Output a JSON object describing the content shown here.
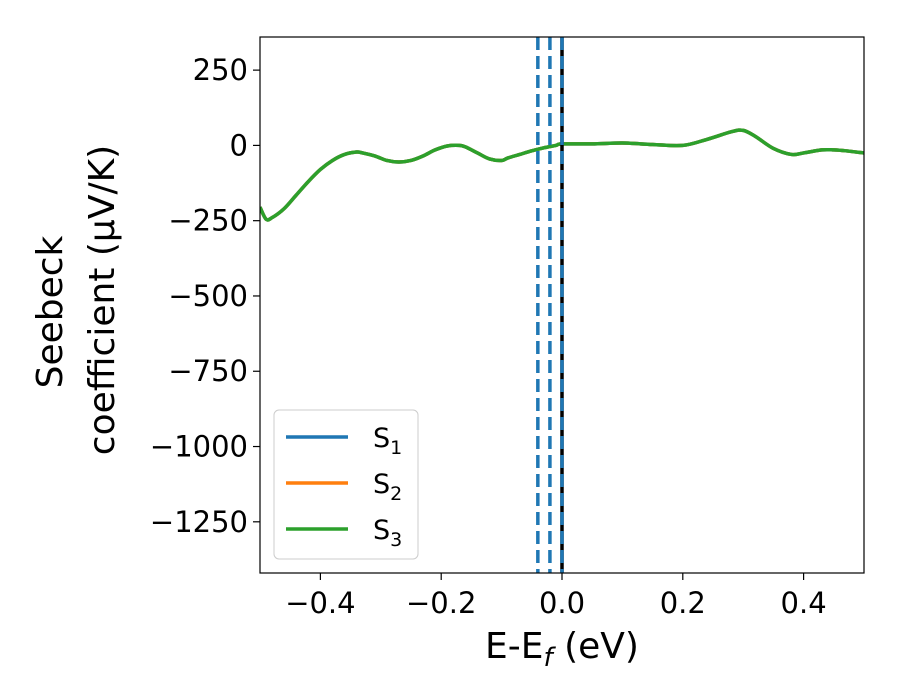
{
  "chart_data": {
    "type": "line",
    "title": "",
    "xlabel": {
      "main": "E-E",
      "sub": "f",
      "tail": " (eV)"
    },
    "ylabel": {
      "line1": "Seebeck",
      "line2": "coefficient  (μV/K)"
    },
    "xlim": [
      -0.5,
      0.5
    ],
    "ylim": [
      -1420,
      360
    ],
    "x_ticks": [
      {
        "value": -0.4,
        "label": "−0.4"
      },
      {
        "value": -0.2,
        "label": "−0.2"
      },
      {
        "value": 0.0,
        "label": "0.0"
      },
      {
        "value": 0.2,
        "label": "0.2"
      },
      {
        "value": 0.4,
        "label": "0.4"
      }
    ],
    "y_ticks": [
      {
        "value": 250,
        "label": "250"
      },
      {
        "value": 0,
        "label": "0"
      },
      {
        "value": -250,
        "label": "−250"
      },
      {
        "value": -500,
        "label": "−500"
      },
      {
        "value": -750,
        "label": "−750"
      },
      {
        "value": -1000,
        "label": "−1000"
      },
      {
        "value": -1250,
        "label": "−1250"
      }
    ],
    "grid": false,
    "legend_position": "bottom-left",
    "series": [
      {
        "name": "S",
        "sub": "1",
        "color": "#1f77b4",
        "x": [
          -0.5,
          -0.49,
          -0.48,
          -0.46,
          -0.44,
          -0.42,
          -0.4,
          -0.38,
          -0.36,
          -0.34,
          -0.33,
          -0.31,
          -0.29,
          -0.27,
          -0.25,
          -0.23,
          -0.21,
          -0.19,
          -0.17,
          -0.16,
          -0.14,
          -0.12,
          -0.1,
          -0.09,
          -0.07,
          -0.05,
          -0.03,
          -0.01,
          0.0,
          0.05,
          0.1,
          0.15,
          0.2,
          0.24,
          0.28,
          0.3,
          0.32,
          0.35,
          0.38,
          0.4,
          0.43,
          0.45,
          0.47,
          0.5
        ],
        "y": [
          -205,
          -245,
          -240,
          -210,
          -165,
          -120,
          -80,
          -50,
          -30,
          -22,
          -25,
          -35,
          -50,
          -55,
          -50,
          -35,
          -15,
          -2,
          0,
          -5,
          -25,
          -45,
          -50,
          -42,
          -30,
          -18,
          -8,
          0,
          5,
          5,
          8,
          3,
          0,
          20,
          45,
          50,
          30,
          -10,
          -30,
          -25,
          -15,
          -15,
          -18,
          -25
        ]
      },
      {
        "name": "S",
        "sub": "2",
        "color": "#ff7f0e",
        "x": [
          -0.5,
          -0.49,
          -0.48,
          -0.46,
          -0.44,
          -0.42,
          -0.4,
          -0.38,
          -0.36,
          -0.34,
          -0.33,
          -0.31,
          -0.29,
          -0.27,
          -0.25,
          -0.23,
          -0.21,
          -0.19,
          -0.17,
          -0.16,
          -0.14,
          -0.12,
          -0.1,
          -0.09,
          -0.07,
          -0.05,
          -0.03,
          -0.01,
          0.0,
          0.05,
          0.1,
          0.15,
          0.2,
          0.24,
          0.28,
          0.3,
          0.32,
          0.35,
          0.38,
          0.4,
          0.43,
          0.45,
          0.47,
          0.5
        ],
        "y": [
          -205,
          -245,
          -240,
          -210,
          -165,
          -120,
          -80,
          -50,
          -30,
          -22,
          -25,
          -35,
          -50,
          -55,
          -50,
          -35,
          -15,
          -2,
          0,
          -5,
          -25,
          -45,
          -50,
          -42,
          -30,
          -18,
          -8,
          0,
          5,
          5,
          8,
          3,
          0,
          20,
          45,
          50,
          30,
          -10,
          -30,
          -25,
          -15,
          -15,
          -18,
          -25
        ]
      },
      {
        "name": "S",
        "sub": "3",
        "color": "#2ca02c",
        "x": [
          -0.5,
          -0.49,
          -0.48,
          -0.46,
          -0.44,
          -0.42,
          -0.4,
          -0.38,
          -0.36,
          -0.34,
          -0.33,
          -0.31,
          -0.29,
          -0.27,
          -0.25,
          -0.23,
          -0.21,
          -0.19,
          -0.17,
          -0.16,
          -0.14,
          -0.12,
          -0.1,
          -0.09,
          -0.07,
          -0.05,
          -0.03,
          -0.01,
          0.0,
          0.05,
          0.1,
          0.15,
          0.2,
          0.24,
          0.28,
          0.3,
          0.32,
          0.35,
          0.38,
          0.4,
          0.43,
          0.45,
          0.47,
          0.5
        ],
        "y": [
          -205,
          -245,
          -240,
          -210,
          -165,
          -120,
          -80,
          -50,
          -30,
          -22,
          -25,
          -35,
          -50,
          -55,
          -50,
          -35,
          -15,
          -2,
          0,
          -5,
          -25,
          -45,
          -50,
          -42,
          -30,
          -18,
          -8,
          0,
          5,
          5,
          8,
          3,
          0,
          20,
          45,
          50,
          30,
          -10,
          -30,
          -25,
          -15,
          -15,
          -18,
          -25
        ]
      }
    ],
    "vertical_lines": [
      {
        "x": -0.04,
        "style": "dashed",
        "color": "#1f77b4"
      },
      {
        "x": -0.02,
        "style": "dashed",
        "color": "#1f77b4"
      },
      {
        "x": 0.0,
        "style": "solid",
        "color": "#000000"
      },
      {
        "x": 0.0,
        "style": "dashed",
        "color": "#1f77b4"
      }
    ]
  }
}
